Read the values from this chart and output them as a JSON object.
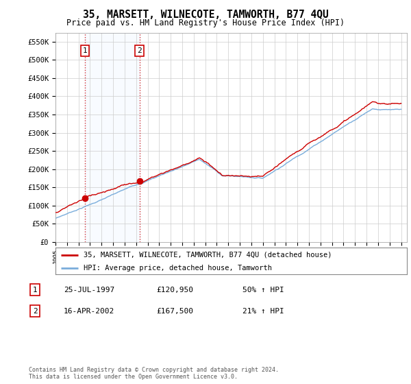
{
  "title": "35, MARSETT, WILNECOTE, TAMWORTH, B77 4QU",
  "subtitle": "Price paid vs. HM Land Registry's House Price Index (HPI)",
  "ylabel_ticks": [
    "£0",
    "£50K",
    "£100K",
    "£150K",
    "£200K",
    "£250K",
    "£300K",
    "£350K",
    "£400K",
    "£450K",
    "£500K",
    "£550K"
  ],
  "ytick_vals": [
    0,
    50000,
    100000,
    150000,
    200000,
    250000,
    300000,
    350000,
    400000,
    450000,
    500000,
    550000
  ],
  "ylim": [
    0,
    575000
  ],
  "xlim_start": 1995.0,
  "xlim_end": 2025.5,
  "sale1_x": 1997.57,
  "sale1_y": 120950,
  "sale1_label": "1",
  "sale1_date": "25-JUL-1997",
  "sale1_price": "£120,950",
  "sale1_hpi": "50% ↑ HPI",
  "sale2_x": 2002.29,
  "sale2_y": 167500,
  "sale2_label": "2",
  "sale2_date": "16-APR-2002",
  "sale2_price": "£167,500",
  "sale2_hpi": "21% ↑ HPI",
  "legend_line1": "35, MARSETT, WILNECOTE, TAMWORTH, B77 4QU (detached house)",
  "legend_line2": "HPI: Average price, detached house, Tamworth",
  "copyright_text": "Contains HM Land Registry data © Crown copyright and database right 2024.\nThis data is licensed under the Open Government Licence v3.0.",
  "red_color": "#cc0000",
  "blue_color": "#7aaddb",
  "shade_color": "#ddeeff",
  "background_color": "#ffffff",
  "grid_color": "#cccccc",
  "sale1_hpi_ratio": 1.5,
  "sale2_hpi_ratio": 1.21
}
